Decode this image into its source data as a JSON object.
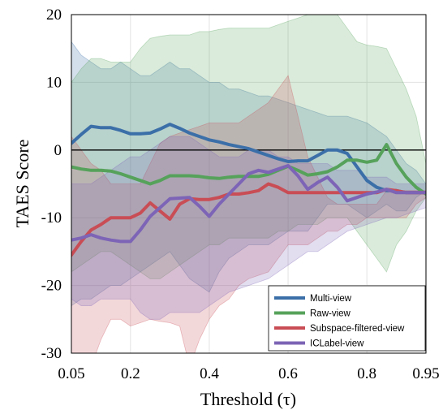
{
  "chart_data": {
    "type": "line",
    "title": "",
    "xlabel": "Threshold (τ)",
    "ylabel": "TAES Score",
    "xlim": [
      0.05,
      0.95
    ],
    "ylim": [
      -30,
      20
    ],
    "xticks": [
      0.05,
      0.2,
      0.4,
      0.6,
      0.8,
      0.95
    ],
    "xtick_labels": [
      "0.05",
      "0.2",
      "0.4",
      "0.6",
      "0.8",
      "0.95"
    ],
    "yticks": [
      20,
      10,
      0,
      -10,
      -20,
      -30
    ],
    "ytick_labels": [
      "20",
      "10",
      "0",
      "-10",
      "-20",
      "-30"
    ],
    "grid": true,
    "reference_line_y": 0,
    "legend_position": "bottom-right",
    "x": [
      0.05,
      0.075,
      0.1,
      0.125,
      0.15,
      0.175,
      0.2,
      0.225,
      0.25,
      0.275,
      0.3,
      0.325,
      0.35,
      0.375,
      0.4,
      0.425,
      0.45,
      0.475,
      0.5,
      0.525,
      0.55,
      0.575,
      0.6,
      0.625,
      0.65,
      0.675,
      0.7,
      0.725,
      0.75,
      0.775,
      0.8,
      0.825,
      0.85,
      0.875,
      0.9,
      0.925,
      0.95
    ],
    "series": [
      {
        "name": "Multi-view",
        "color": "#3b6fa8",
        "values": [
          1,
          2.3,
          3.5,
          3.3,
          3.3,
          2.9,
          2.4,
          2.4,
          2.5,
          3.1,
          3.8,
          3.2,
          2.5,
          2.0,
          1.5,
          1.2,
          0.8,
          0.5,
          0.2,
          -0.3,
          -0.8,
          -1.3,
          -1.7,
          -1.6,
          -1.6,
          -0.8,
          0,
          0,
          -0.5,
          -2.5,
          -4.5,
          -5.5,
          -6.0,
          -6.0,
          -6.3,
          -6.3,
          -6.3
        ],
        "band_lower": [
          -23,
          -22,
          -22,
          -21,
          -20,
          -20,
          -19,
          -18,
          -17,
          -16,
          -15,
          -17,
          -19,
          -20,
          -21,
          -18,
          -16,
          -15,
          -14,
          -14,
          -14,
          -13,
          -12,
          -12,
          -12,
          -10,
          -8,
          -8,
          -8,
          -9,
          -10,
          -9,
          -8,
          -9,
          -9,
          -7,
          -6
        ],
        "band_upper": [
          16,
          14,
          13,
          12,
          12,
          13,
          12,
          11,
          11,
          12,
          13,
          12,
          12,
          11,
          10,
          10,
          9,
          9,
          8.5,
          8,
          8,
          7.5,
          7,
          6.5,
          6,
          5.5,
          5,
          5,
          5,
          4.5,
          4,
          3,
          2,
          0,
          -2,
          -3,
          -5
        ]
      },
      {
        "name": "Raw-view",
        "color": "#56a25b",
        "values": [
          -2.5,
          -2.8,
          -3.0,
          -3.0,
          -3.1,
          -3.5,
          -4.0,
          -4.5,
          -5.0,
          -4.5,
          -3.8,
          -3.8,
          -3.8,
          -3.9,
          -4.1,
          -4.2,
          -4.0,
          -3.9,
          -3.9,
          -3.9,
          -3.6,
          -3.0,
          -2.4,
          -3.0,
          -3.7,
          -3.5,
          -3.2,
          -2.5,
          -1.5,
          -1.5,
          -1.8,
          -1.5,
          0.8,
          -2.0,
          -4.0,
          -5.5,
          -6.5
        ],
        "band_lower": [
          -18,
          -17,
          -16,
          -15,
          -15,
          -16,
          -17,
          -18,
          -19,
          -19,
          -18,
          -17,
          -16,
          -15,
          -14,
          -14,
          -13,
          -13,
          -13,
          -13,
          -13,
          -12,
          -12,
          -11,
          -11,
          -11,
          -10,
          -10,
          -10,
          -12,
          -14,
          -16,
          -18,
          -14,
          -12,
          -9,
          -7
        ],
        "band_upper": [
          10,
          12,
          13.5,
          13.5,
          13,
          13,
          13,
          15,
          16.5,
          16.8,
          17,
          17,
          17,
          17.5,
          17.5,
          17.8,
          18,
          18,
          18,
          18,
          18,
          18.5,
          19,
          19.5,
          20,
          20.5,
          21,
          20,
          18,
          16,
          15.5,
          15.3,
          15,
          12,
          9,
          5,
          -2
        ]
      },
      {
        "name": "Subspace-filtered-view",
        "color": "#c94d55",
        "values": [
          -15.5,
          -13.5,
          -11.8,
          -11.0,
          -10.0,
          -10.0,
          -10.0,
          -9.3,
          -7.8,
          -9.0,
          -10.2,
          -8.0,
          -7.2,
          -7.3,
          -7.3,
          -7.0,
          -6.5,
          -6.5,
          -6.3,
          -6.0,
          -5.0,
          -5.5,
          -6.3,
          -6.3,
          -6.3,
          -6.3,
          -6.3,
          -6.3,
          -6.3,
          -6.3,
          -6.3,
          -6.3,
          -5.8,
          -6.0,
          -6.3,
          -6.3,
          -6.3
        ],
        "band_lower": [
          -38,
          -35,
          -32,
          -28,
          -25,
          -25,
          -26,
          -25.5,
          -25,
          -25.3,
          -25.5,
          -26,
          -32,
          -28,
          -25,
          -23,
          -22,
          -20,
          -19,
          -18.5,
          -18,
          -16,
          -14,
          -14,
          -14,
          -13,
          -12,
          -12,
          -11,
          -11,
          -10,
          -10,
          -10,
          -10,
          -10,
          -8,
          -7
        ],
        "band_upper": [
          2,
          0,
          -2,
          -3,
          -5,
          -5,
          -5,
          -5,
          -2,
          1,
          2,
          2.5,
          3,
          3.5,
          4,
          4,
          4,
          4,
          5,
          6,
          7,
          9,
          11,
          5,
          -1,
          -4,
          -7,
          -8,
          -8,
          -8,
          -8,
          -8,
          -6,
          -6,
          -6,
          -6,
          -6
        ]
      },
      {
        "name": "ICLabel-view",
        "color": "#7d64b6",
        "values": [
          -13.3,
          -13.0,
          -12.5,
          -13.0,
          -13.3,
          -13.5,
          -13.5,
          -11.8,
          -9.8,
          -8.5,
          -7.2,
          -7.1,
          -7.0,
          -8.3,
          -9.8,
          -8.0,
          -6.5,
          -5.0,
          -3.5,
          -3.0,
          -3.3,
          -2.8,
          -2.3,
          -3.8,
          -5.8,
          -4.8,
          -4.0,
          -5.5,
          -7.5,
          -7.0,
          -6.5,
          -6.2,
          -5.8,
          -6.3,
          -6.3,
          -6.3,
          -6.3
        ],
        "band_lower": [
          -22,
          -23,
          -23,
          -22,
          -22,
          -22,
          -22,
          -24,
          -25,
          -25,
          -24,
          -24,
          -24,
          -24,
          -23,
          -22,
          -21,
          -20.5,
          -20,
          -19.5,
          -19,
          -18,
          -17,
          -16,
          -15,
          -15,
          -14,
          -13,
          -12,
          -11.5,
          -11,
          -10.5,
          -10,
          -10,
          -9.5,
          -9,
          -8.5
        ],
        "band_upper": [
          -5,
          -5,
          -5,
          -4,
          -3,
          -2,
          -1,
          -1,
          0,
          1,
          2,
          2,
          2,
          1,
          0,
          -1,
          -1,
          -1,
          0,
          0,
          0,
          -1,
          -1,
          -2,
          -2,
          -2,
          -2,
          -3,
          -3,
          -3,
          -4,
          -4,
          -4,
          -5,
          -5,
          -5,
          -5
        ]
      }
    ]
  }
}
